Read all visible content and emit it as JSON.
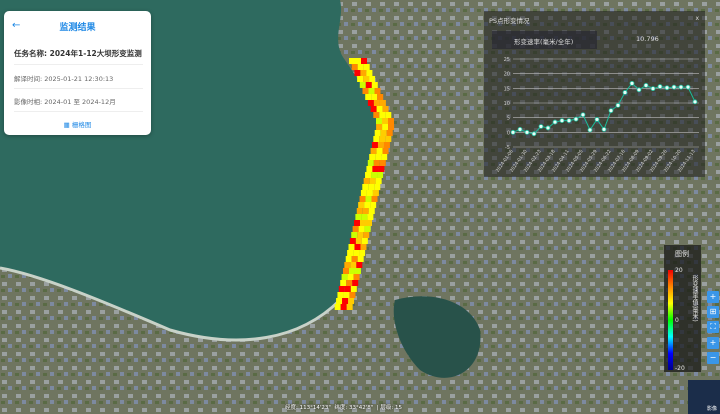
{
  "panel": {
    "title": "监测结果",
    "task_label": "任务名称:",
    "task_value": "2024年1-12大坝形变监测",
    "parse_time": "解译时间: 2025-01-21 12:30:13",
    "image_time": "影像时相: 2024-01 至 2024-12月",
    "legend_button": "栅格图"
  },
  "chart_panel": {
    "title": "PS点形变情况",
    "close": "x",
    "rate_label": "形变速率(毫米/全年)",
    "rate_value": "10.796"
  },
  "chart_data": {
    "type": "line",
    "title": "",
    "xlabel": "",
    "ylabel": "",
    "ylim": [
      -5,
      25
    ],
    "yticks": [
      -5,
      0,
      5,
      10,
      15,
      20,
      25
    ],
    "grid": true,
    "color": "#1abc9c",
    "x": [
      "2024-01-06",
      "2024-01-18",
      "2024-01-30",
      "2024-02-11",
      "2024-02-23",
      "2024-03-06",
      "2024-03-18",
      "2024-03-30",
      "2024-04-11",
      "2024-04-23",
      "2024-05-05",
      "2024-05-17",
      "2024-05-29",
      "2024-06-10",
      "2024-06-22",
      "2024-07-04",
      "2024-07-16",
      "2024-07-28",
      "2024-08-09",
      "2024-08-21",
      "2024-09-02",
      "2024-09-14",
      "2024-09-26",
      "2024-10-08",
      "2024-10-20",
      "2024-11-01",
      "2024-11-13"
    ],
    "values": [
      0,
      1,
      0,
      -0.5,
      2,
      1.5,
      3.5,
      4,
      4,
      4.5,
      6,
      0.8,
      4.4,
      1,
      7.4,
      9.2,
      13.6,
      16.7,
      14.5,
      16,
      14.9,
      15.6,
      15.2,
      15.4,
      15.4,
      15.4,
      10.4
    ]
  },
  "legend": {
    "title": "图例",
    "max": "20",
    "mid": "0",
    "min": "-20",
    "label": "形变速率值(毫米)"
  },
  "tools": [
    "+",
    "⊞",
    "⛶",
    "+",
    "−"
  ],
  "minimap": {
    "label": "影像"
  },
  "status": {
    "lng": "经度: 113°14'23\"",
    "lat": "纬度: 33°42'8\"",
    "level": "| 层级: 15"
  }
}
